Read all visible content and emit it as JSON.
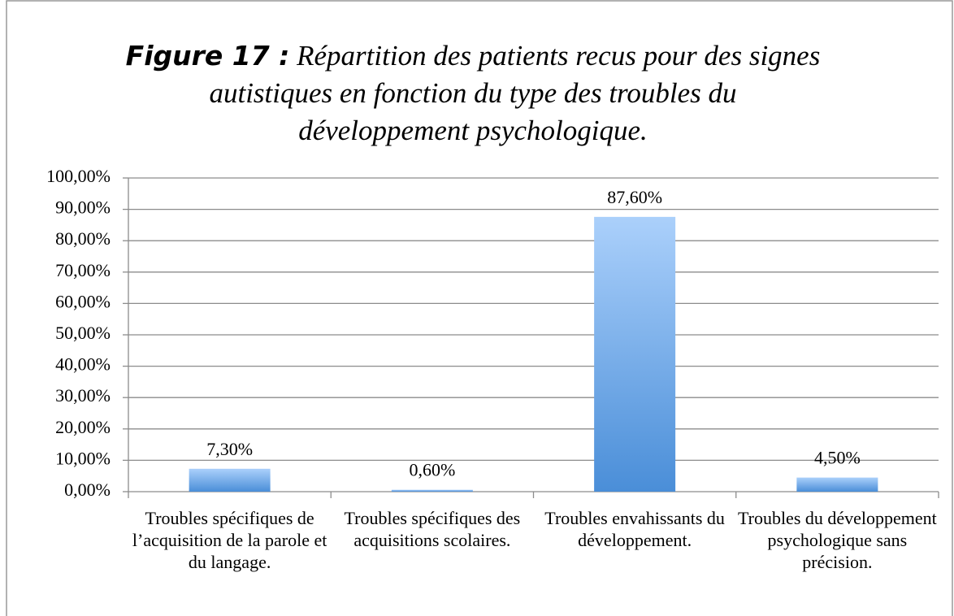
{
  "chart_data": {
    "type": "bar",
    "title_label": "Figure 17 :",
    "title": "Répartition des patients recus pour des signes autistiques en fonction du type des troubles du développement psychologique.",
    "categories": [
      "Troubles spécifiques de l’acquisition de la parole et du langage.",
      "Troubles spécifiques des acquisitions scolaires.",
      "Troubles envahissants du développement.",
      "Troubles du développement psychologique sans précision."
    ],
    "values": [
      7.3,
      0.6,
      87.6,
      4.5
    ],
    "value_labels": [
      "7,30%",
      "0,60%",
      "87,60%",
      "4,50%"
    ],
    "color": "#5b9bdf",
    "ylim": [
      0,
      100
    ],
    "yticks": [
      {
        "value": 0,
        "label": "0,00%"
      },
      {
        "value": 10,
        "label": "10,00%"
      },
      {
        "value": 20,
        "label": "20,00%"
      },
      {
        "value": 30,
        "label": "30,00%"
      },
      {
        "value": 40,
        "label": "40,00%"
      },
      {
        "value": 50,
        "label": "50,00%"
      },
      {
        "value": 60,
        "label": "60,00%"
      },
      {
        "value": 70,
        "label": "70,00%"
      },
      {
        "value": 80,
        "label": "80,00%"
      },
      {
        "value": 90,
        "label": "90,00%"
      },
      {
        "value": 100,
        "label": "100,00%"
      }
    ],
    "grid": true
  }
}
